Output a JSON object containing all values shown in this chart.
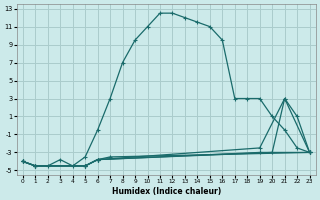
{
  "xlabel": "Humidex (Indice chaleur)",
  "background_color": "#cceaea",
  "grid_color": "#aacccc",
  "line_color": "#1a6b6b",
  "xlim": [
    -0.5,
    23.5
  ],
  "ylim": [
    -5.5,
    13.5
  ],
  "xticks": [
    0,
    1,
    2,
    3,
    4,
    5,
    6,
    7,
    8,
    9,
    10,
    11,
    12,
    13,
    14,
    15,
    16,
    17,
    18,
    19,
    20,
    21,
    22,
    23
  ],
  "yticks": [
    -5,
    -3,
    -1,
    1,
    3,
    5,
    7,
    9,
    11,
    13
  ],
  "line1_x": [
    0,
    1,
    2,
    3,
    4,
    5,
    6,
    7,
    8,
    9,
    10,
    11,
    12,
    13,
    14,
    15,
    16,
    17,
    18,
    19,
    20,
    21,
    22,
    23
  ],
  "line1_y": [
    -4.0,
    -4.5,
    -4.5,
    -3.8,
    -4.5,
    -3.5,
    -0.5,
    3.0,
    7.0,
    9.5,
    11.0,
    12.5,
    12.5,
    12.0,
    11.5,
    11.0,
    9.5,
    3.0,
    3.0,
    3.0,
    1.0,
    -0.5,
    -2.5,
    -3.0
  ],
  "line2_x": [
    0,
    1,
    5,
    6,
    7,
    23
  ],
  "line2_y": [
    -4.0,
    -4.5,
    -4.5,
    -3.8,
    -3.5,
    -3.0
  ],
  "line3_x": [
    0,
    1,
    5,
    6,
    19,
    23
  ],
  "line3_y": [
    -4.0,
    -4.5,
    -4.5,
    -3.8,
    -3.0,
    -3.0
  ],
  "line4_x": [
    0,
    1,
    5,
    6,
    20,
    21,
    23
  ],
  "line4_y": [
    -4.0,
    -4.5,
    -4.5,
    -3.8,
    -3.0,
    3.0,
    -3.0
  ],
  "line5_x": [
    0,
    1,
    5,
    6,
    19,
    21,
    22,
    23
  ],
  "line5_y": [
    -4.0,
    -4.5,
    -4.5,
    -3.8,
    -2.5,
    3.0,
    1.0,
    -3.0
  ]
}
